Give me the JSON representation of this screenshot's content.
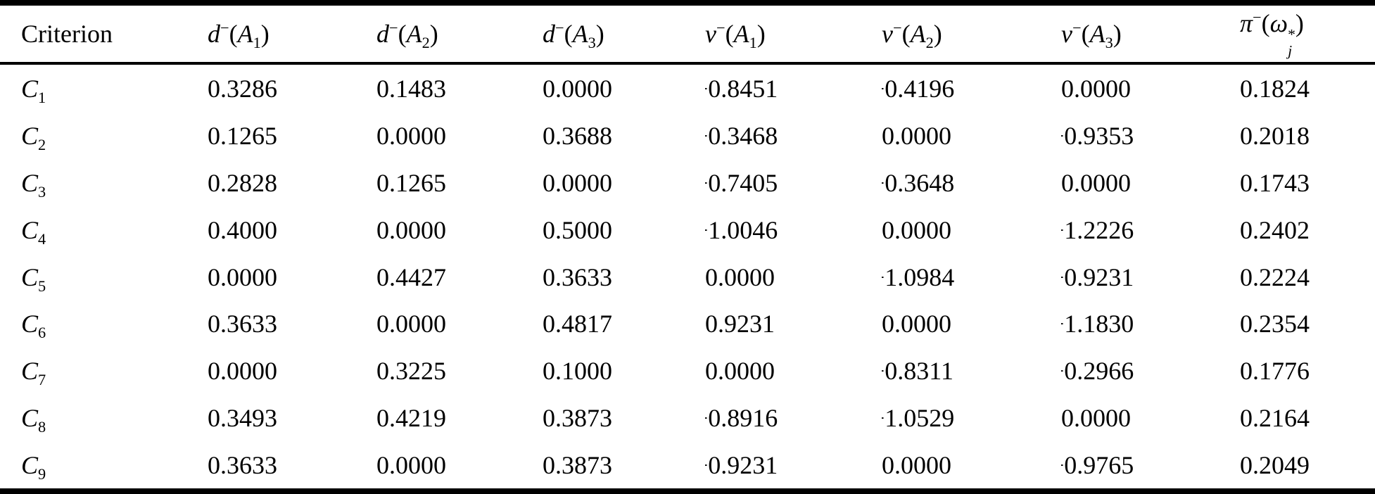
{
  "colors": {
    "text": "#000000",
    "background": "#ffffff",
    "rule": "#000000"
  },
  "table": {
    "headers": [
      {
        "name": "criterion",
        "plain": "Criterion",
        "tokens": [
          {
            "t": "text",
            "v": "Criterion"
          }
        ]
      },
      {
        "name": "d-minus-A1",
        "plain": "d−(A1)",
        "tokens": [
          {
            "t": "i",
            "v": "d"
          },
          {
            "t": "sup",
            "v": "−"
          },
          {
            "t": "text",
            "v": "("
          },
          {
            "t": "i",
            "v": "A"
          },
          {
            "t": "sub",
            "v": "1"
          },
          {
            "t": "text",
            "v": ")"
          }
        ]
      },
      {
        "name": "d-minus-A2",
        "plain": "d−(A2)",
        "tokens": [
          {
            "t": "i",
            "v": "d"
          },
          {
            "t": "sup",
            "v": "−"
          },
          {
            "t": "text",
            "v": "("
          },
          {
            "t": "i",
            "v": "A"
          },
          {
            "t": "sub",
            "v": "2"
          },
          {
            "t": "text",
            "v": ")"
          }
        ]
      },
      {
        "name": "d-minus-A3",
        "plain": "d−(A3)",
        "tokens": [
          {
            "t": "i",
            "v": "d"
          },
          {
            "t": "sup",
            "v": "−"
          },
          {
            "t": "text",
            "v": "("
          },
          {
            "t": "i",
            "v": "A"
          },
          {
            "t": "sub",
            "v": "3"
          },
          {
            "t": "text",
            "v": ")"
          }
        ]
      },
      {
        "name": "v-minus-A1",
        "plain": "v−(A1)",
        "tokens": [
          {
            "t": "i",
            "v": "v"
          },
          {
            "t": "sup",
            "v": "−"
          },
          {
            "t": "text",
            "v": "("
          },
          {
            "t": "i",
            "v": "A"
          },
          {
            "t": "sub",
            "v": "1"
          },
          {
            "t": "text",
            "v": ")"
          }
        ]
      },
      {
        "name": "v-minus-A2",
        "plain": "v−(A2)",
        "tokens": [
          {
            "t": "i",
            "v": "v"
          },
          {
            "t": "sup",
            "v": "−"
          },
          {
            "t": "text",
            "v": "("
          },
          {
            "t": "i",
            "v": "A"
          },
          {
            "t": "sub",
            "v": "2"
          },
          {
            "t": "text",
            "v": ")"
          }
        ]
      },
      {
        "name": "v-minus-A3",
        "plain": "v−(A3)",
        "tokens": [
          {
            "t": "i",
            "v": "v"
          },
          {
            "t": "sup",
            "v": "−"
          },
          {
            "t": "text",
            "v": "("
          },
          {
            "t": "i",
            "v": "A"
          },
          {
            "t": "sub",
            "v": "3"
          },
          {
            "t": "text",
            "v": ")"
          }
        ]
      },
      {
        "name": "pi-minus-omega-star-j",
        "plain": "π−(ω*j)",
        "tokens": [
          {
            "t": "i",
            "v": "π"
          },
          {
            "t": "sup",
            "v": "−"
          },
          {
            "t": "text",
            "v": "("
          },
          {
            "t": "i",
            "v": "ω"
          },
          {
            "t": "supsub",
            "sup": "*",
            "sub": "j"
          },
          {
            "t": "text",
            "v": ")"
          }
        ]
      }
    ],
    "rows": [
      {
        "label_plain": "C1",
        "label_tokens": [
          {
            "t": "i",
            "v": "C"
          },
          {
            "t": "sub",
            "v": "1"
          }
        ],
        "values": [
          "0.3286",
          "0.1483",
          "0.0000",
          "−0.8451",
          "−0.4196",
          "0.0000",
          "0.1824"
        ]
      },
      {
        "label_plain": "C2",
        "label_tokens": [
          {
            "t": "i",
            "v": "C"
          },
          {
            "t": "sub",
            "v": "2"
          }
        ],
        "values": [
          "0.1265",
          "0.0000",
          "0.3688",
          "−0.3468",
          "0.0000",
          "−0.9353",
          "0.2018"
        ]
      },
      {
        "label_plain": "C3",
        "label_tokens": [
          {
            "t": "i",
            "v": "C"
          },
          {
            "t": "sub",
            "v": "3"
          }
        ],
        "values": [
          "0.2828",
          "0.1265",
          "0.0000",
          "−0.7405",
          "−0.3648",
          "0.0000",
          "0.1743"
        ]
      },
      {
        "label_plain": "C4",
        "label_tokens": [
          {
            "t": "i",
            "v": "C"
          },
          {
            "t": "sub",
            "v": "4"
          }
        ],
        "values": [
          "0.4000",
          "0.0000",
          "0.5000",
          "−1.0046",
          "0.0000",
          "−1.2226",
          "0.2402"
        ]
      },
      {
        "label_plain": "C5",
        "label_tokens": [
          {
            "t": "i",
            "v": "C"
          },
          {
            "t": "sub",
            "v": "5"
          }
        ],
        "values": [
          "0.0000",
          "0.4427",
          "0.3633",
          "0.0000",
          "−1.0984",
          "−0.9231",
          "0.2224"
        ]
      },
      {
        "label_plain": "C6",
        "label_tokens": [
          {
            "t": "i",
            "v": "C"
          },
          {
            "t": "sub",
            "v": "6"
          }
        ],
        "values": [
          "0.3633",
          "0.0000",
          "0.4817",
          "0.9231",
          "0.0000",
          "−1.1830",
          "0.2354"
        ]
      },
      {
        "label_plain": "C7",
        "label_tokens": [
          {
            "t": "i",
            "v": "C"
          },
          {
            "t": "sub",
            "v": "7"
          }
        ],
        "values": [
          "0.0000",
          "0.3225",
          "0.1000",
          "0.0000",
          "−0.8311",
          "−0.2966",
          "0.1776"
        ]
      },
      {
        "label_plain": "C8",
        "label_tokens": [
          {
            "t": "i",
            "v": "C"
          },
          {
            "t": "sub",
            "v": "8"
          }
        ],
        "values": [
          "0.3493",
          "0.4219",
          "0.3873",
          "−0.8916",
          "−1.0529",
          "0.0000",
          "0.2164"
        ]
      },
      {
        "label_plain": "C9",
        "label_tokens": [
          {
            "t": "i",
            "v": "C"
          },
          {
            "t": "sub",
            "v": "9"
          }
        ],
        "values": [
          "0.3633",
          "0.0000",
          "0.3873",
          "−0.9231",
          "0.0000",
          "−0.9765",
          "0.2049"
        ]
      }
    ]
  }
}
